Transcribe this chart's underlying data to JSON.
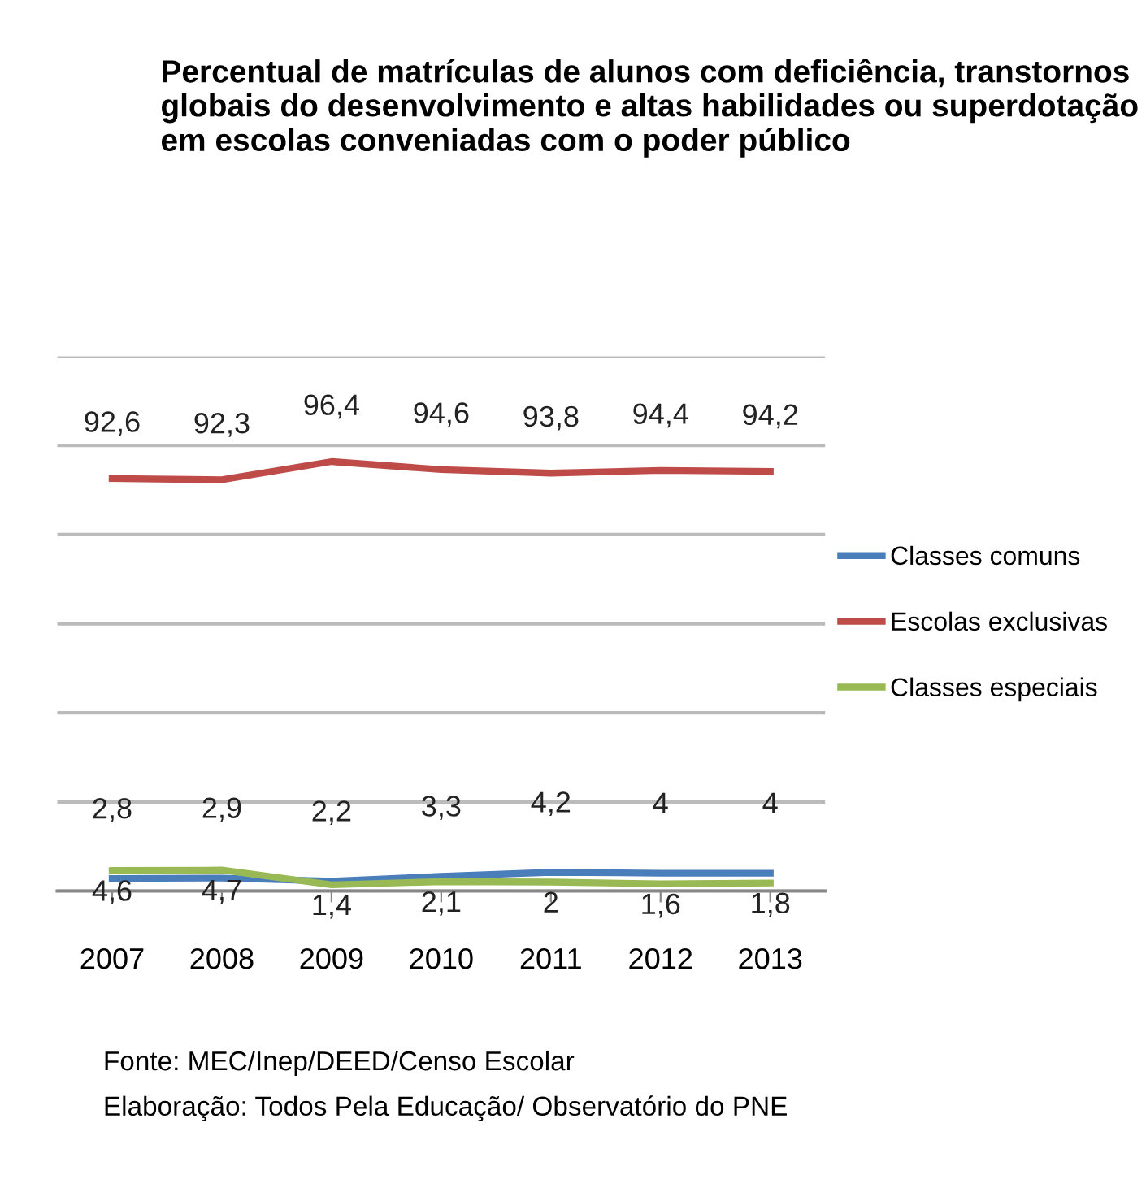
{
  "chart_data": {
    "type": "line",
    "title": "Percentual de matrículas de alunos com deficiência, transtornos globais do desenvolvimento e altas habilidades ou superdotação em escolas conveniadas com o poder público",
    "categories": [
      "2007",
      "2008",
      "2009",
      "2010",
      "2011",
      "2012",
      "2013"
    ],
    "series": [
      {
        "name": "Classes comuns",
        "color": "#4a7ebb",
        "values": [
          2.8,
          2.9,
          2.2,
          3.3,
          4.2,
          4,
          4
        ],
        "value_labels": [
          "2,8",
          "2,9",
          "2,2",
          "3,3",
          "4,2",
          "4",
          "4"
        ]
      },
      {
        "name": "Escolas exclusivas",
        "color": "#be4b48",
        "values": [
          92.6,
          92.3,
          96.4,
          94.6,
          93.8,
          94.4,
          94.2
        ],
        "value_labels": [
          "92,6",
          "92,3",
          "96,4",
          "94,6",
          "93,8",
          "94,4",
          "94,2"
        ]
      },
      {
        "name": "Classes especiais",
        "color": "#98b954",
        "values": [
          4.6,
          4.7,
          1.4,
          2.1,
          2,
          1.6,
          1.8
        ],
        "value_labels": [
          "4,6",
          "4,7",
          "1,4",
          "2,1",
          "2",
          "1,6",
          "1,8"
        ]
      }
    ],
    "ylim": [
      0,
      120
    ],
    "yticks": [
      {
        "value": 0,
        "label": null
      },
      {
        "value": 20,
        "label": null
      },
      {
        "value": 40,
        "label": null
      },
      {
        "value": 60,
        "label": null
      },
      {
        "value": 80,
        "label": null
      },
      {
        "value": 100,
        "label": null
      },
      {
        "value": 120,
        "label": null
      }
    ],
    "grid": "y",
    "legend": "right",
    "marker": "none",
    "line_style": "solid",
    "annotations": [
      "Fonte: MEC/Inep/DEED/Censo Escolar",
      "Elaboração: Todos Pela Educação/ Observatório do PNE"
    ]
  }
}
